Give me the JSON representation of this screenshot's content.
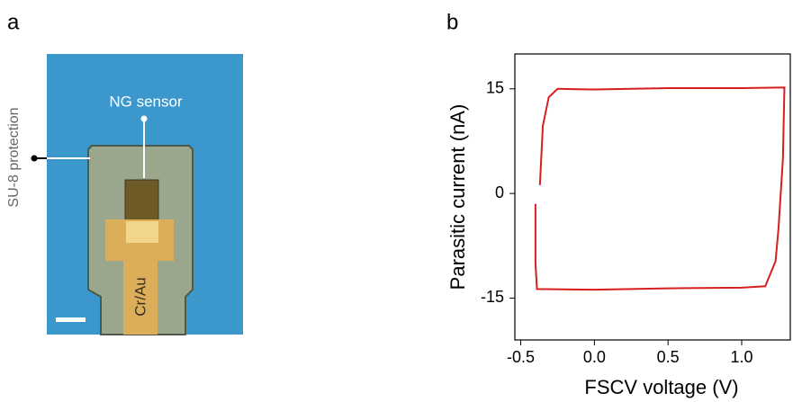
{
  "panel_labels": [
    "a",
    "b"
  ],
  "image": {
    "sensor_label": "NG sensor",
    "protection_label": "SU-8 protection",
    "electrode_label": "Cr/Au"
  },
  "chart_data": {
    "type": "line",
    "x_label": "FSCV voltage (V)",
    "y_label": "Parasitic current (nA)",
    "x": [
      -0.37,
      -0.35,
      -0.31,
      -0.25,
      0.0,
      0.5,
      1.0,
      1.29,
      1.28,
      1.25,
      1.23,
      1.16,
      1.0,
      0.5,
      0.0,
      -0.39,
      -0.4,
      -0.4
    ],
    "series": [
      {
        "color": "#d62020",
        "values": [
          1.2,
          9.7,
          13.8,
          15.0,
          14.9,
          15.1,
          15.1,
          15.2,
          5,
          -5,
          -9.7,
          -13.3,
          -13.5,
          -13.6,
          -13.8,
          -13.7,
          -10,
          -1.5
        ]
      }
    ],
    "xlim": [
      -0.54,
      1.33
    ],
    "ylim": [
      -21,
      20
    ],
    "xticks": [
      -0.5,
      {
        "value": 0,
        "label": "0.0"
      },
      0.5,
      {
        "value": 1,
        "label": "1.0"
      }
    ],
    "yticks": [
      15,
      0,
      -15
    ]
  }
}
